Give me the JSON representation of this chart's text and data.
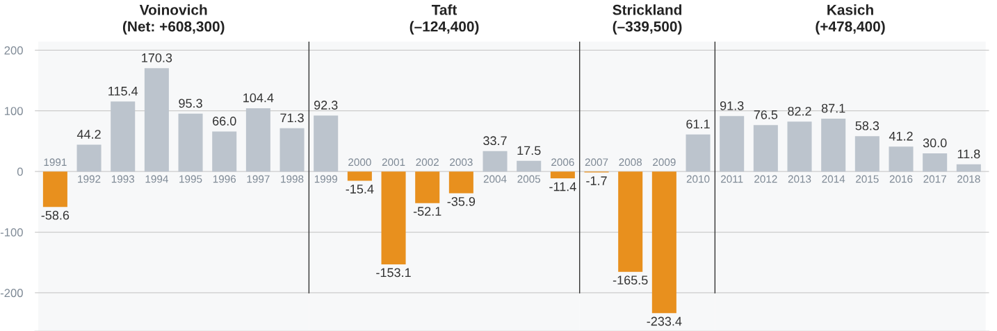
{
  "chart_data": {
    "type": "bar",
    "categories": [
      "1991",
      "1992",
      "1993",
      "1994",
      "1995",
      "1996",
      "1997",
      "1998",
      "1999",
      "2000",
      "2001",
      "2002",
      "2003",
      "2004",
      "2005",
      "2006",
      "2007",
      "2008",
      "2009",
      "2010",
      "2011",
      "2012",
      "2013",
      "2014",
      "2015",
      "2016",
      "2017",
      "2018"
    ],
    "values": [
      -58.6,
      44.2,
      115.4,
      170.3,
      95.3,
      66.0,
      104.4,
      71.3,
      92.3,
      -15.4,
      -153.1,
      -52.1,
      -35.9,
      33.7,
      17.5,
      -11.4,
      -1.7,
      -165.5,
      -233.4,
      61.1,
      91.3,
      76.5,
      82.2,
      87.1,
      58.3,
      41.2,
      30.0,
      11.8
    ],
    "value_labels": [
      "-58.6",
      "44.2",
      "115.4",
      "170.3",
      "95.3",
      "66.0",
      "104.4",
      "71.3",
      "92.3",
      "-15.4",
      "-153.1",
      "-52.1",
      "-35.9",
      "33.7",
      "17.5",
      "-11.4",
      "-1.7",
      "-165.5",
      "-233.4",
      "61.1",
      "91.3",
      "76.5",
      "82.2",
      "87.1",
      "58.3",
      "41.2",
      "30.0",
      "11.8"
    ],
    "colors": [
      "#e8901e",
      "#bcc4cd",
      "#bcc4cd",
      "#bcc4cd",
      "#bcc4cd",
      "#bcc4cd",
      "#bcc4cd",
      "#bcc4cd",
      "#bcc4cd",
      "#e8901e",
      "#e8901e",
      "#e8901e",
      "#e8901e",
      "#bcc4cd",
      "#bcc4cd",
      "#e8901e",
      "#e8901e",
      "#e8901e",
      "#e8901e",
      "#bcc4cd",
      "#bcc4cd",
      "#bcc4cd",
      "#bcc4cd",
      "#bcc4cd",
      "#bcc4cd",
      "#bcc4cd",
      "#bcc4cd",
      "#bcc4cd"
    ],
    "ylim": [
      -263,
      214
    ],
    "yticks": [
      -200,
      -100,
      0,
      100,
      200
    ],
    "grid": "y",
    "bands": [
      {
        "axis": "x",
        "from": "1991",
        "to": "1998",
        "label": "Voinovich\n(Net: +608,300)",
        "color": "#f7f8f9"
      },
      {
        "axis": "x",
        "from": "1999",
        "to": "2006",
        "label": "Taft\n(–124,400)",
        "color": "#f7f8f9"
      },
      {
        "axis": "x",
        "from": "2007",
        "to": "2010",
        "label": "Strickland\n(–339,500)",
        "color": "#f7f8f9"
      },
      {
        "axis": "x",
        "from": "2011",
        "to": "2018",
        "label": "Kasich\n(+478,400)",
        "color": "#f7f8f9"
      }
    ]
  }
}
